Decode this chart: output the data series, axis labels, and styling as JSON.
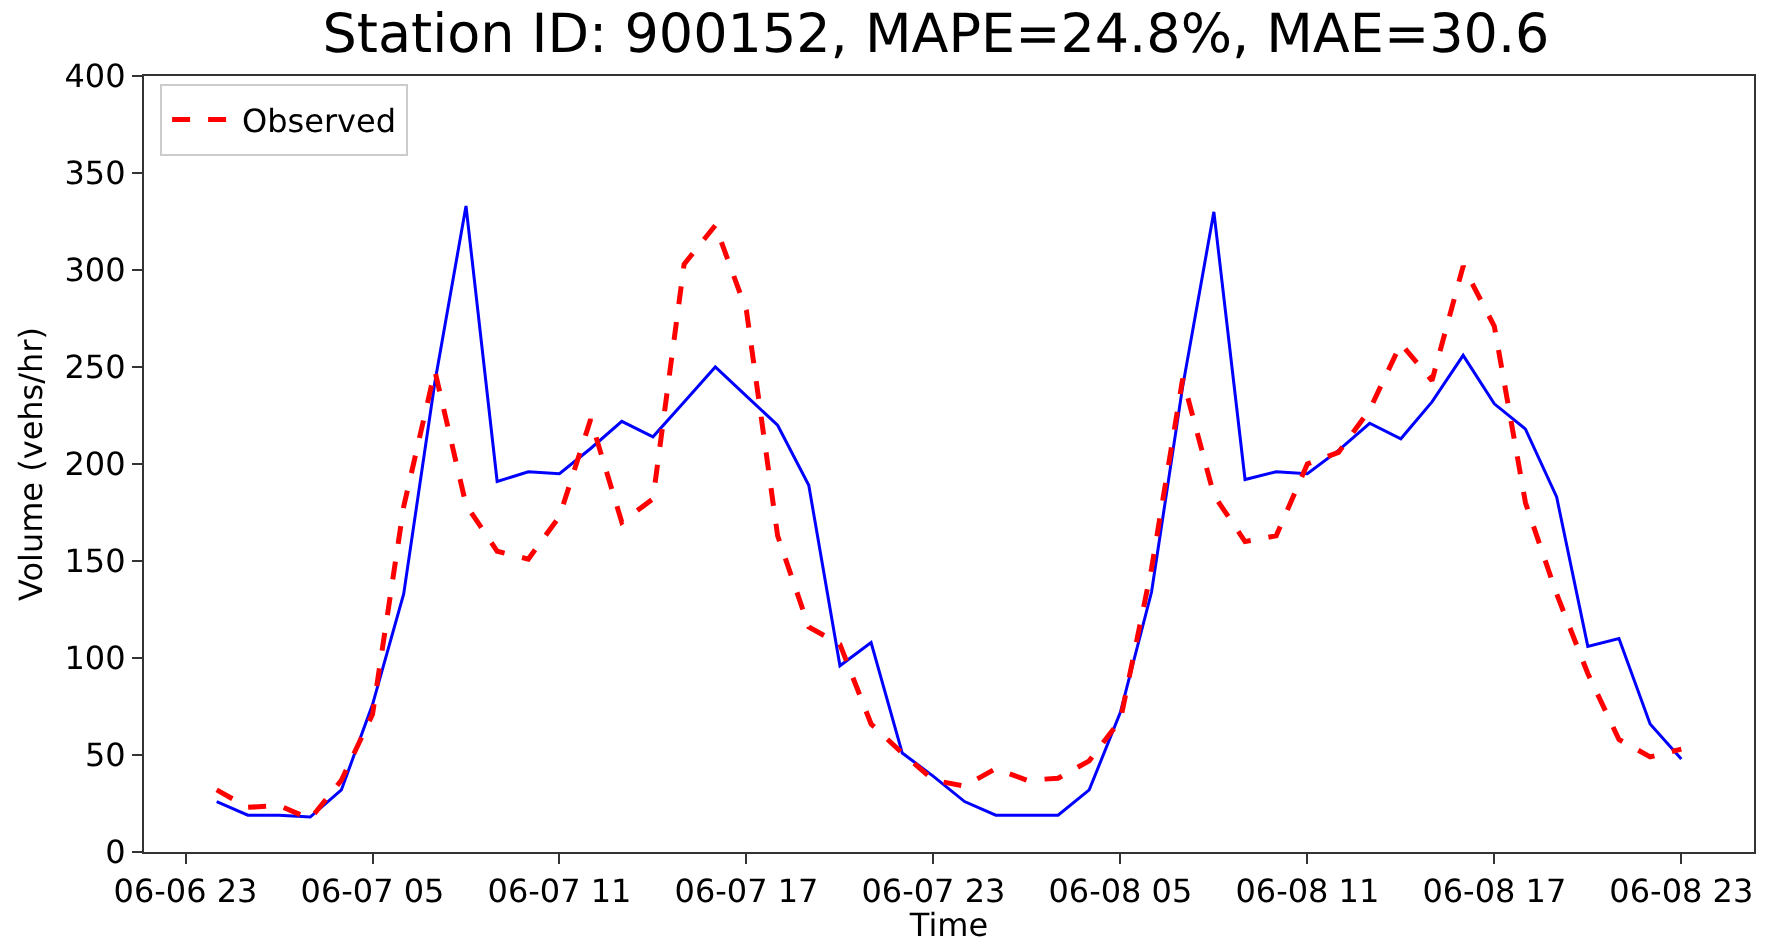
{
  "chart_data": {
    "type": "line",
    "title": "Station ID: 900152, MAPE=24.8%, MAE=30.6",
    "xlabel": "Time",
    "ylabel": "Volume (vehs/hr)",
    "x": [
      "--06-07T00:00",
      "--06-07T01:00",
      "--06-07T02:00",
      "--06-07T03:00",
      "--06-07T04:00",
      "--06-07T05:00",
      "--06-07T06:00",
      "--06-07T07:00",
      "--06-07T08:00",
      "--06-07T09:00",
      "--06-07T10:00",
      "--06-07T11:00",
      "--06-07T12:00",
      "--06-07T13:00",
      "--06-07T14:00",
      "--06-07T15:00",
      "--06-07T16:00",
      "--06-07T17:00",
      "--06-07T18:00",
      "--06-07T19:00",
      "--06-07T20:00",
      "--06-07T21:00",
      "--06-07T22:00",
      "--06-07T23:00",
      "--06-08T00:00",
      "--06-08T01:00",
      "--06-08T02:00",
      "--06-08T03:00",
      "--06-08T04:00",
      "--06-08T05:00",
      "--06-08T06:00",
      "--06-08T07:00",
      "--06-08T08:00",
      "--06-08T09:00",
      "--06-08T10:00",
      "--06-08T11:00",
      "--06-08T12:00",
      "--06-08T13:00",
      "--06-08T14:00",
      "--06-08T15:00",
      "--06-08T16:00",
      "--06-08T17:00",
      "--06-08T18:00",
      "--06-08T19:00",
      "--06-08T20:00",
      "--06-08T21:00",
      "--06-08T22:00",
      "--06-08T23:00"
    ],
    "series": [
      {
        "color": "#0000ff",
        "line_style": "solid",
        "values": [
          26,
          19,
          19,
          18,
          32,
          76,
          133,
          242,
          333,
          191,
          196,
          195,
          208,
          222,
          214,
          232,
          250,
          235,
          220,
          189,
          96,
          108,
          51,
          39,
          26,
          19,
          19,
          19,
          32,
          72,
          134,
          240,
          330,
          192,
          196,
          195,
          207,
          221,
          213,
          232,
          256,
          231,
          218,
          183,
          106,
          110,
          66,
          48
        ]
      },
      {
        "name": "Observed",
        "color": "#ff0000",
        "line_style": "dashed",
        "values": [
          32,
          23,
          24,
          17,
          37,
          71,
          178,
          248,
          179,
          155,
          151,
          173,
          223,
          170,
          182,
          303,
          323,
          279,
          163,
          116,
          107,
          66,
          51,
          37,
          34,
          43,
          37,
          38,
          47,
          68,
          146,
          244,
          184,
          160,
          163,
          200,
          206,
          228,
          262,
          243,
          302,
          271,
          180,
          133,
          92,
          58,
          49,
          53
        ]
      }
    ],
    "xlim": [
      "--06-06T21:40",
      "--06-09T01:20"
    ],
    "xticks": [
      {
        "value": "--06-06T23:00",
        "label": "06-06 23"
      },
      {
        "value": "--06-07T05:00",
        "label": "06-07 05"
      },
      {
        "value": "--06-07T11:00",
        "label": "06-07 11"
      },
      {
        "value": "--06-07T17:00",
        "label": "06-07 17"
      },
      {
        "value": "--06-07T23:00",
        "label": "06-07 23"
      },
      {
        "value": "--06-08T05:00",
        "label": "06-08 05"
      },
      {
        "value": "--06-08T11:00",
        "label": "06-08 11"
      },
      {
        "value": "--06-08T17:00",
        "label": "06-08 17"
      },
      {
        "value": "--06-08T23:00",
        "label": "06-08 23"
      }
    ],
    "ylim": [
      0,
      400
    ],
    "yticks": [
      0,
      50,
      100,
      150,
      200,
      250,
      300,
      350,
      400
    ],
    "grid": false,
    "legend": "top left",
    "marker": "none"
  }
}
